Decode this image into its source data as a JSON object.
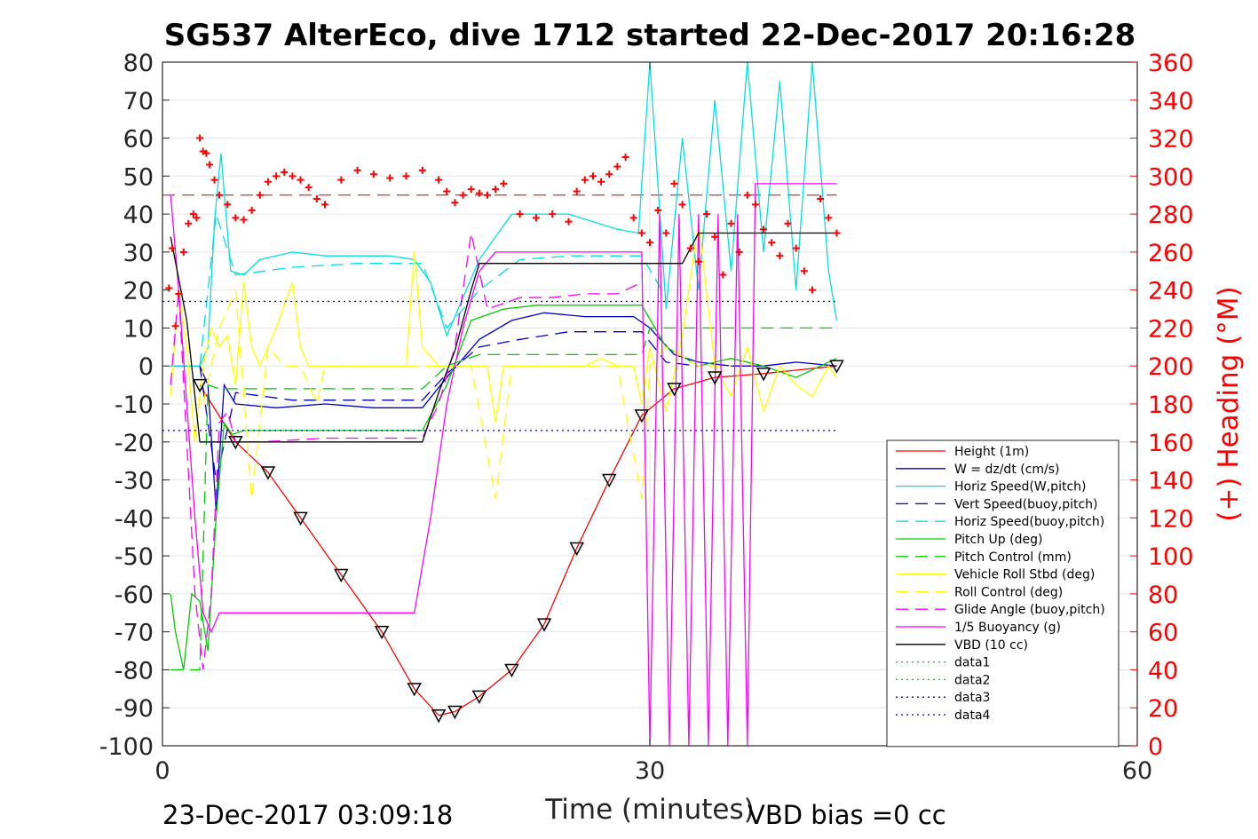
{
  "chart_data": {
    "type": "line",
    "title": "SG537 AlterEco, dive 1712 started 22-Dec-2017 20:16:28",
    "xlabel": "Time (minutes)",
    "ylabel_right": "(+) Heading (°M)",
    "footer_left": "23-Dec-2017 03:09:18",
    "footer_right": "VBD bias =0 cc",
    "xlim": [
      0,
      60
    ],
    "ylim": [
      -100,
      80
    ],
    "ylim_right": [
      0,
      360
    ],
    "x_ticks": [
      "0",
      "30",
      "60"
    ],
    "y_ticks": [
      "80",
      "70",
      "60",
      "50",
      "40",
      "30",
      "20",
      "10",
      "0",
      "-10",
      "-20",
      "-30",
      "-40",
      "-50",
      "-60",
      "-70",
      "-80",
      "-90",
      "-100"
    ],
    "y_ticks_right": [
      "360",
      "340",
      "320",
      "300",
      "280",
      "260",
      "240",
      "220",
      "200",
      "180",
      "160",
      "140",
      "120",
      "100",
      "80",
      "60",
      "40",
      "20",
      "0"
    ],
    "grid": true,
    "legend_position": "bottom-right",
    "colors": {
      "axis_right": "#ff0000",
      "tick_text": "#262626"
    },
    "series": [
      {
        "name": "Height (1m)",
        "color": "#ff0000",
        "dash": "solid",
        "x": [
          2.3,
          4.5,
          6.5,
          8.5,
          11,
          13.5,
          15.5,
          17,
          18,
          19.5,
          21.5,
          23.5,
          25.5,
          27.5,
          29.5,
          31.5,
          34,
          37,
          41.5
        ],
        "y": [
          -5,
          -20,
          -28,
          -40,
          -55,
          -70,
          -85,
          -92,
          -91,
          -87,
          -80,
          -68,
          -48,
          -30,
          -13,
          -6,
          -3,
          -2,
          0
        ]
      },
      {
        "name": "W = dz/dt (cm/s)",
        "color": "#0000cc",
        "dash": "solid",
        "x": [
          0.5,
          2.3,
          2.8,
          3.3,
          3.8,
          4.5,
          7,
          10,
          13,
          16,
          17.5,
          19.5,
          21.5,
          23.5,
          26,
          29,
          30,
          31.5,
          33,
          35,
          37,
          39,
          41.5
        ],
        "y": [
          0,
          0,
          -5,
          -38,
          -5,
          -10,
          -11,
          -10,
          -11,
          -11,
          -3,
          7,
          12,
          14,
          13,
          13,
          10,
          3,
          1,
          0,
          0,
          1,
          0
        ]
      },
      {
        "name": "Horiz Speed(W,pitch)",
        "color": "#00e0e0",
        "dash": "solid",
        "x": [
          0.5,
          2.3,
          2.8,
          3.2,
          3.6,
          4.2,
          5,
          6,
          8,
          10,
          12,
          14,
          15.5,
          16.5,
          17.5,
          18.5,
          19.5,
          20.5,
          21.5,
          23,
          25,
          26.5,
          28,
          29.3,
          30,
          31,
          32,
          33,
          34,
          35,
          36,
          37,
          38,
          39,
          40,
          41,
          41.5
        ],
        "y": [
          0,
          0,
          5,
          38,
          56,
          25,
          24,
          28,
          30,
          29,
          29,
          29,
          28,
          22,
          8,
          18,
          28,
          34,
          40,
          40,
          40,
          38,
          36,
          35,
          80,
          15,
          60,
          20,
          70,
          25,
          80,
          30,
          75,
          20,
          80,
          25,
          12
        ]
      },
      {
        "name": "Vert Speed(buoy,pitch)",
        "color": "#0000cc",
        "dash": "dashed",
        "x": [
          2.3,
          3.3,
          4.5,
          8,
          12,
          16,
          17.5,
          19.5,
          22,
          25,
          28,
          29.5,
          31,
          33
        ],
        "y": [
          0,
          -30,
          -7,
          -9,
          -9,
          -9,
          -2,
          5,
          7,
          9,
          9,
          9,
          1,
          0
        ]
      },
      {
        "name": "Horiz Speed(buoy,pitch)",
        "color": "#00e0e0",
        "dash": "dashed",
        "x": [
          2.3,
          3.3,
          4.5,
          8,
          12,
          16,
          17.5,
          19.5,
          22,
          25,
          28,
          29.5,
          31
        ],
        "y": [
          0,
          40,
          24,
          26,
          27,
          27,
          10,
          20,
          28,
          29,
          29,
          29,
          18
        ]
      },
      {
        "name": "Pitch Up (deg)",
        "color": "#00cc00",
        "dash": "solid",
        "x": [
          0.5,
          0.8,
          1.3,
          1.8,
          2.3,
          2.8,
          3.3,
          3.8,
          4.3,
          5,
          8,
          12,
          16,
          17.5,
          19,
          21,
          23,
          25,
          27,
          29.5,
          31,
          33,
          35,
          37,
          39,
          41.5
        ],
        "y": [
          -60,
          -70,
          -80,
          -60,
          -62,
          -75,
          -40,
          -15,
          -18,
          -17,
          -17,
          -17,
          -17,
          -5,
          12,
          15,
          16,
          16,
          16,
          16,
          5,
          0,
          2,
          0,
          -3,
          2
        ]
      },
      {
        "name": "Pitch Control (mm)",
        "color": "#00cc00",
        "dash": "dashed",
        "x": [
          0.5,
          2.3,
          2.8,
          3.5,
          6,
          10,
          14,
          16,
          17.5,
          19.5,
          23,
          26,
          29.5,
          30,
          41.5
        ],
        "y": [
          -80,
          -80,
          -5,
          -6,
          -6,
          -6,
          -6,
          -6,
          0,
          3,
          3,
          3,
          3,
          10,
          10
        ]
      },
      {
        "name": "Vehicle Roll Stbd (deg)",
        "color": "#ffff00",
        "dash": "solid",
        "x": [
          0.5,
          1,
          1.5,
          2,
          2.5,
          3,
          3.5,
          4,
          4.5,
          5,
          5.5,
          6,
          7,
          8,
          8.5,
          9,
          10,
          12,
          14,
          15,
          15.5,
          16,
          17,
          18,
          20,
          20.5,
          21,
          22,
          24,
          26,
          27,
          28,
          29,
          29.5,
          30,
          31,
          32,
          33,
          34,
          35,
          36,
          37,
          38,
          39,
          40,
          41,
          41.5
        ],
        "y": [
          -8,
          20,
          5,
          -20,
          0,
          10,
          5,
          8,
          -5,
          22,
          5,
          0,
          10,
          22,
          5,
          0,
          0,
          0,
          0,
          0,
          30,
          5,
          0,
          0,
          0,
          -15,
          0,
          0,
          0,
          0,
          2,
          0,
          0,
          -10,
          5,
          -12,
          8,
          38,
          0,
          -8,
          5,
          -12,
          0,
          -5,
          -8,
          0,
          -3
        ]
      },
      {
        "name": "Roll Control (deg)",
        "color": "#ffff00",
        "dash": "dashed",
        "x": [
          2.5,
          3.5,
          4.5,
          5.5,
          6.5,
          7.5,
          8.5,
          9.5,
          10,
          14,
          16,
          17,
          19,
          20.5,
          21.5,
          23,
          25,
          26.5,
          28,
          29.5,
          30,
          31,
          33,
          35
        ],
        "y": [
          -10,
          10,
          20,
          -35,
          5,
          0,
          0,
          -10,
          0,
          0,
          0,
          0,
          0,
          -35,
          0,
          0,
          0,
          0,
          0,
          -35,
          0,
          5,
          0,
          0
        ]
      },
      {
        "name": "Glide Angle (buoy,pitch)",
        "color": "#ff00ff",
        "dash": "dashed",
        "x": [
          0.5,
          1,
          1.5,
          2,
          2.5,
          3,
          3.5,
          4,
          4.5,
          6,
          10,
          14,
          16,
          17,
          18,
          19,
          20,
          22,
          24,
          26,
          28,
          29.5
        ],
        "y": [
          -5,
          20,
          -20,
          -60,
          -80,
          -60,
          -15,
          -12,
          -20,
          -20,
          -19,
          -19,
          -19,
          -10,
          5,
          35,
          15,
          18,
          18,
          19,
          19,
          22
        ]
      },
      {
        "name": "1/5 Buoyancy (g)",
        "color": "#ff00ff",
        "dash": "solid",
        "x": [
          0.5,
          1,
          1.5,
          2,
          2.5,
          3,
          3.5,
          4,
          4.5,
          6,
          10,
          14,
          15.5,
          16.5,
          17.5,
          18.5,
          19.5,
          20.5,
          22,
          25,
          28,
          29.5,
          30,
          30.6,
          31.2,
          31.8,
          32.4,
          33,
          33.6,
          34.2,
          34.8,
          35.4,
          36,
          36.5,
          37,
          38,
          41.5
        ],
        "y": [
          45,
          20,
          -10,
          -40,
          -65,
          -70,
          -65,
          -65,
          -65,
          -65,
          -65,
          -65,
          -65,
          -40,
          -10,
          10,
          25,
          30,
          30,
          30,
          30,
          30,
          -100,
          40,
          -100,
          40,
          -100,
          40,
          -100,
          40,
          -100,
          40,
          -100,
          48,
          48,
          48,
          48
        ]
      },
      {
        "name": "VBD (10 cc)",
        "color": "#000000",
        "dash": "solid",
        "x": [
          0.5,
          1.5,
          2.3,
          2.8,
          4,
          8,
          12,
          16,
          17,
          18,
          18.5,
          19,
          19.5,
          20.5,
          28,
          29.5,
          30,
          31,
          32,
          33,
          35,
          38,
          41.5
        ],
        "y": [
          34,
          12,
          -20,
          -20,
          -20,
          -20,
          -20,
          -20,
          -7,
          4,
          12,
          20,
          27,
          27,
          27,
          27,
          27,
          27,
          27,
          35,
          35,
          35,
          35
        ]
      },
      {
        "name": "data1",
        "color": "#00cc00",
        "dash": "dotted",
        "x": [],
        "y": []
      },
      {
        "name": "data2",
        "color": "#00cc00",
        "dash": "dotted",
        "x": [],
        "y": []
      },
      {
        "name": "data3",
        "color": "#0000aa",
        "dash": "dotted",
        "x": [
          0,
          41.5
        ],
        "y": [
          17,
          17
        ]
      },
      {
        "name": "data4",
        "color": "#0000aa",
        "dash": "dotted",
        "x": [
          0,
          41.5
        ],
        "y": [
          -17,
          -17
        ]
      }
    ],
    "heading_target": {
      "color": "#cc0000",
      "value": 290,
      "x": [
        0,
        41.5
      ]
    },
    "heading_points": {
      "color": "#ff0000",
      "x": [
        0.4,
        0.6,
        0.8,
        1,
        1.3,
        1.6,
        1.9,
        2.1,
        2.3,
        2.5,
        2.7,
        2.9,
        3.2,
        3.5,
        4,
        4.5,
        5,
        5.5,
        6,
        6.5,
        7,
        7.5,
        8,
        8.5,
        9,
        9.5,
        10,
        11,
        12,
        13,
        14,
        15,
        16,
        17,
        17.5,
        18,
        18.5,
        19,
        19.5,
        20,
        20.5,
        21,
        22,
        23,
        24,
        25,
        25.5,
        26,
        26.5,
        27,
        27.5,
        28,
        28.5,
        29,
        29.5,
        30,
        30.5,
        31,
        31.5,
        32,
        32.5,
        33,
        33.5,
        34,
        34.5,
        35,
        35.5,
        36,
        36.5,
        37,
        37.5,
        38,
        38.5,
        39,
        39.5,
        40,
        40.5,
        41,
        41.5
      ],
      "y": [
        241,
        262,
        221,
        238,
        260,
        275,
        280,
        278,
        320,
        313,
        312,
        306,
        298,
        290,
        285,
        278,
        277,
        282,
        290,
        297,
        300,
        302,
        300,
        298,
        294,
        288,
        285,
        298,
        303,
        301,
        299,
        300,
        303,
        298,
        292,
        286,
        290,
        293,
        291,
        290,
        293,
        296,
        280,
        278,
        280,
        276,
        292,
        298,
        300,
        297,
        301,
        305,
        310,
        278,
        270,
        265,
        282,
        270,
        296,
        285,
        262,
        255,
        280,
        268,
        248,
        275,
        260,
        290,
        285,
        272,
        265,
        258,
        275,
        262,
        250,
        240,
        288,
        278,
        270
      ]
    }
  }
}
